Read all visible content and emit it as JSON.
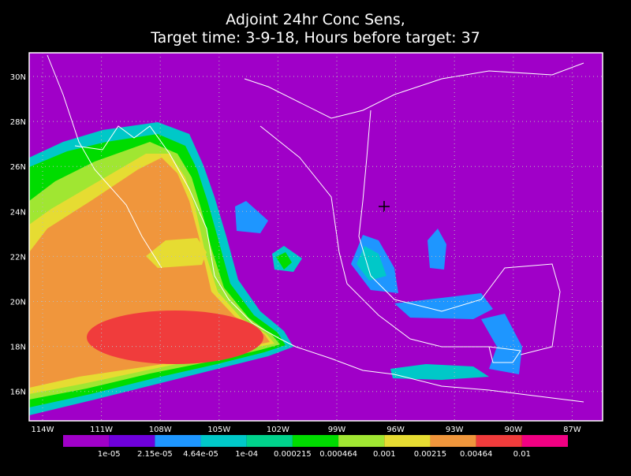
{
  "title": {
    "line1": "Adjoint 24hr Conc Sens,",
    "line2": "Target time: 3-9-18, Hours before target: 37"
  },
  "map": {
    "lat_labels": [
      "30N",
      "28N",
      "26N",
      "24N",
      "22N",
      "20N",
      "18N",
      "16N"
    ],
    "lon_labels": [
      "114W",
      "111W",
      "108W",
      "105W",
      "102W",
      "99W",
      "96W",
      "93W",
      "90W",
      "87W"
    ],
    "background_color": "#a000c8"
  },
  "colorbar": {
    "colors": [
      "#a000c8",
      "#6e00dc",
      "#1e96ff",
      "#00c8c8",
      "#00d28c",
      "#00dc00",
      "#a0e632",
      "#e6dc32",
      "#f0963c",
      "#f03c3c",
      "#f00082"
    ],
    "labels": [
      "1e-05",
      "2.15e-05",
      "4.64e-05",
      "1e-04",
      "0.000215",
      "0.000464",
      "0.001",
      "0.00215",
      "0.00464",
      "0.01"
    ]
  }
}
